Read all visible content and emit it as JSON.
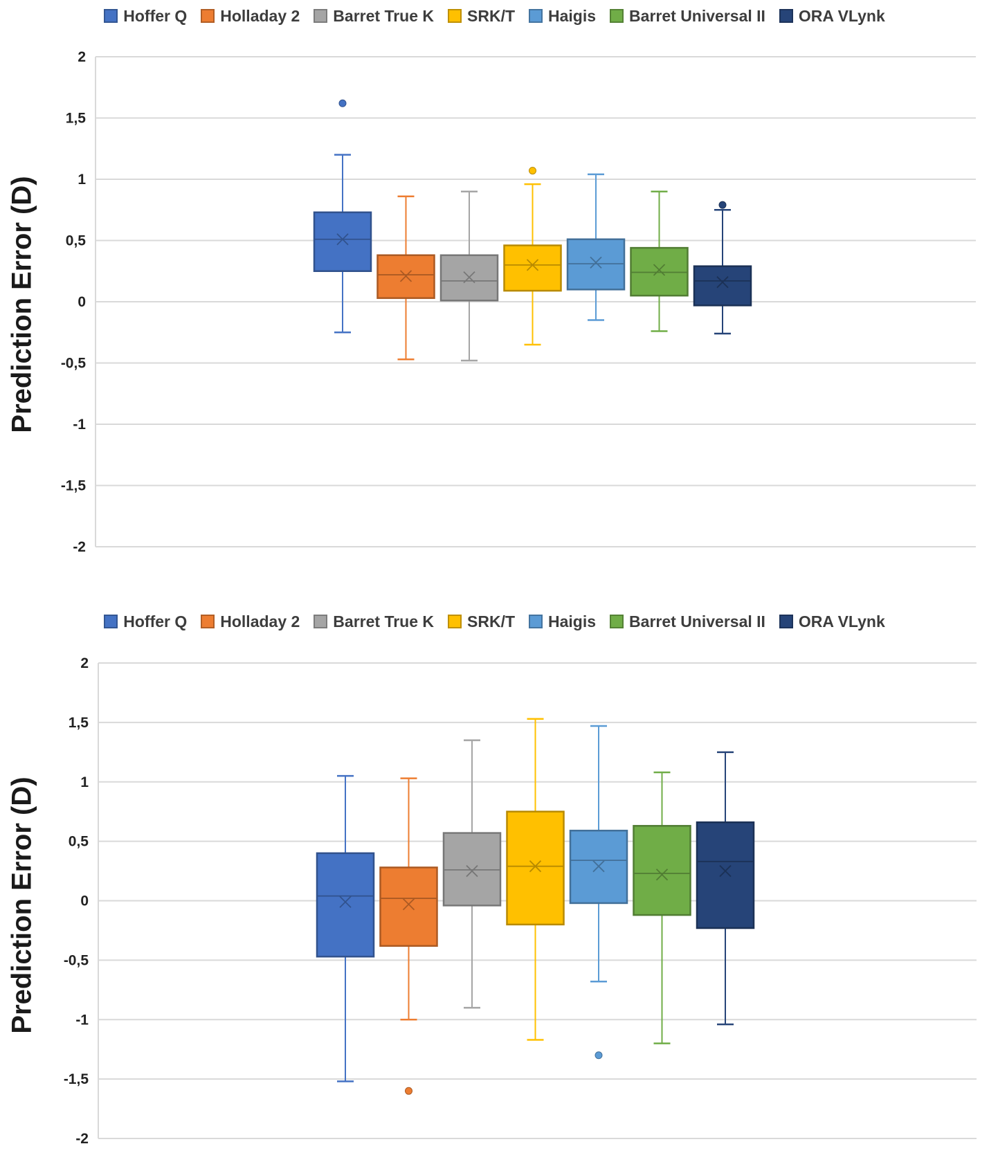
{
  "chart_data": [
    {
      "type": "box",
      "title": "",
      "xlabel": "",
      "ylabel": "Prediction Error (D)",
      "ylim": [
        -2,
        2
      ],
      "yticks": [
        2,
        1.5,
        1,
        0.5,
        0,
        -0.5,
        -1,
        -1.5,
        -2
      ],
      "ytick_labels": [
        "2",
        "1,5",
        "1",
        "0,5",
        "0",
        "-0,5",
        "-1",
        "-1,5",
        "-2"
      ],
      "legend": [
        "Hoffer Q",
        "Holladay 2",
        "Barret True K",
        "SRK/T",
        "Haigis",
        "Barret Universal II",
        "ORA VLynk"
      ],
      "legend_position": "top-center",
      "series": [
        {
          "name": "Hoffer Q",
          "color": "#4472C4",
          "min": -0.25,
          "q1": 0.25,
          "median": 0.51,
          "q3": 0.73,
          "max": 1.2,
          "mean": 0.51,
          "outliers": [
            1.62
          ]
        },
        {
          "name": "Holladay 2",
          "color": "#ED7D31",
          "min": -0.47,
          "q1": 0.03,
          "median": 0.22,
          "q3": 0.38,
          "max": 0.86,
          "mean": 0.21,
          "outliers": []
        },
        {
          "name": "Barret True K",
          "color": "#A5A5A5",
          "min": -0.48,
          "q1": 0.01,
          "median": 0.17,
          "q3": 0.38,
          "max": 0.9,
          "mean": 0.2,
          "outliers": []
        },
        {
          "name": "SRK/T",
          "color": "#FFC000",
          "min": -0.35,
          "q1": 0.09,
          "median": 0.3,
          "q3": 0.46,
          "max": 0.96,
          "mean": 0.3,
          "outliers": [
            1.07
          ]
        },
        {
          "name": "Haigis",
          "color": "#5B9BD5",
          "min": -0.15,
          "q1": 0.1,
          "median": 0.31,
          "q3": 0.51,
          "max": 1.04,
          "mean": 0.32,
          "outliers": []
        },
        {
          "name": "Barret Universal II",
          "color": "#70AD47",
          "min": -0.24,
          "q1": 0.05,
          "median": 0.24,
          "q3": 0.44,
          "max": 0.9,
          "mean": 0.26,
          "outliers": []
        },
        {
          "name": "ORA VLynk",
          "color": "#264478",
          "min": -0.26,
          "q1": -0.03,
          "median": 0.17,
          "q3": 0.29,
          "max": 0.75,
          "mean": 0.16,
          "outliers": [
            0.79
          ]
        }
      ]
    },
    {
      "type": "box",
      "title": "",
      "xlabel": "",
      "ylabel": "Prediction Error (D)",
      "ylim": [
        -2,
        2
      ],
      "yticks": [
        2,
        1.5,
        1,
        0.5,
        0,
        -0.5,
        -1,
        -1.5,
        -2
      ],
      "ytick_labels": [
        "2",
        "1,5",
        "1",
        "0,5",
        "0",
        "-0,5",
        "-1",
        "-1,5",
        "-2"
      ],
      "legend": [
        "Hoffer Q",
        "Holladay 2",
        "Barret True K",
        "SRK/T",
        "Haigis",
        "Barret Universal II",
        "ORA VLynk"
      ],
      "legend_position": "top-center",
      "series": [
        {
          "name": "Hoffer Q",
          "color": "#4472C4",
          "min": -1.52,
          "q1": -0.47,
          "median": 0.04,
          "q3": 0.4,
          "max": 1.05,
          "mean": -0.01,
          "outliers": []
        },
        {
          "name": "Holladay 2",
          "color": "#ED7D31",
          "min": -1.0,
          "q1": -0.38,
          "median": 0.02,
          "q3": 0.28,
          "max": 1.03,
          "mean": -0.03,
          "outliers": [
            -1.6
          ]
        },
        {
          "name": "Barret True K",
          "color": "#A5A5A5",
          "min": -0.9,
          "q1": -0.04,
          "median": 0.26,
          "q3": 0.57,
          "max": 1.35,
          "mean": 0.25,
          "outliers": []
        },
        {
          "name": "SRK/T",
          "color": "#FFC000",
          "min": -1.17,
          "q1": -0.2,
          "median": 0.29,
          "q3": 0.75,
          "max": 1.53,
          "mean": 0.29,
          "outliers": []
        },
        {
          "name": "Haigis",
          "color": "#5B9BD5",
          "min": -0.68,
          "q1": -0.02,
          "median": 0.34,
          "q3": 0.59,
          "max": 1.47,
          "mean": 0.29,
          "outliers": [
            -1.3
          ]
        },
        {
          "name": "Barret Universal II",
          "color": "#70AD47",
          "min": -1.2,
          "q1": -0.12,
          "median": 0.23,
          "q3": 0.63,
          "max": 1.08,
          "mean": 0.22,
          "outliers": []
        },
        {
          "name": "ORA VLynk",
          "color": "#264478",
          "min": -1.04,
          "q1": -0.23,
          "median": 0.33,
          "q3": 0.66,
          "max": 1.25,
          "mean": 0.25,
          "outliers": []
        }
      ]
    }
  ]
}
